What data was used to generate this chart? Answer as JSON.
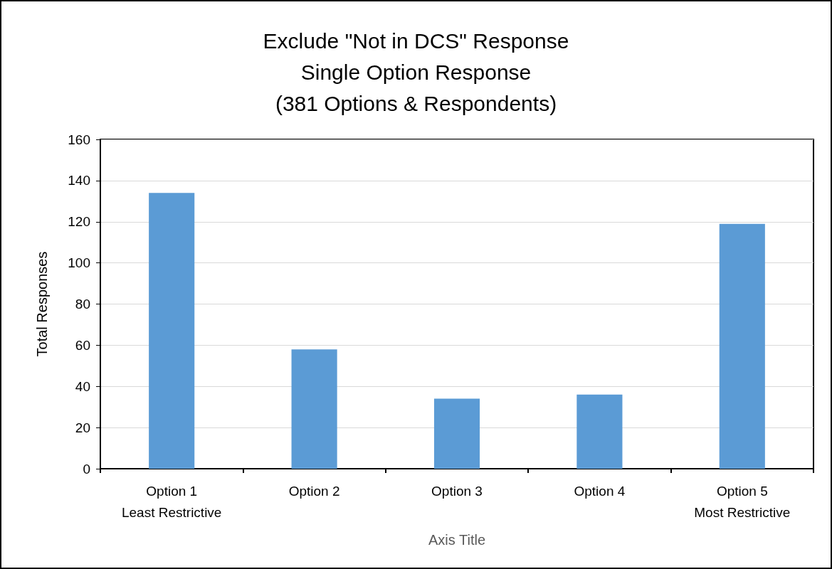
{
  "chart_data": {
    "type": "bar",
    "title": "Exclude \"Not in DCS\" Response\nSingle Option Response\n(381 Options & Respondents)",
    "categories": [
      "Option 1\nLeast Restrictive",
      "Option 2",
      "Option 3",
      "Option 4",
      "Option 5\nMost Restrictive"
    ],
    "values": [
      134,
      58,
      34,
      36,
      119
    ],
    "color": "#5b9bd5",
    "xlabel": "Axis Title",
    "ylabel": "Total Responses",
    "ylim": [
      0,
      160
    ],
    "yticks": [
      0,
      20,
      40,
      60,
      80,
      100,
      120,
      140,
      160
    ],
    "grid": "y"
  }
}
